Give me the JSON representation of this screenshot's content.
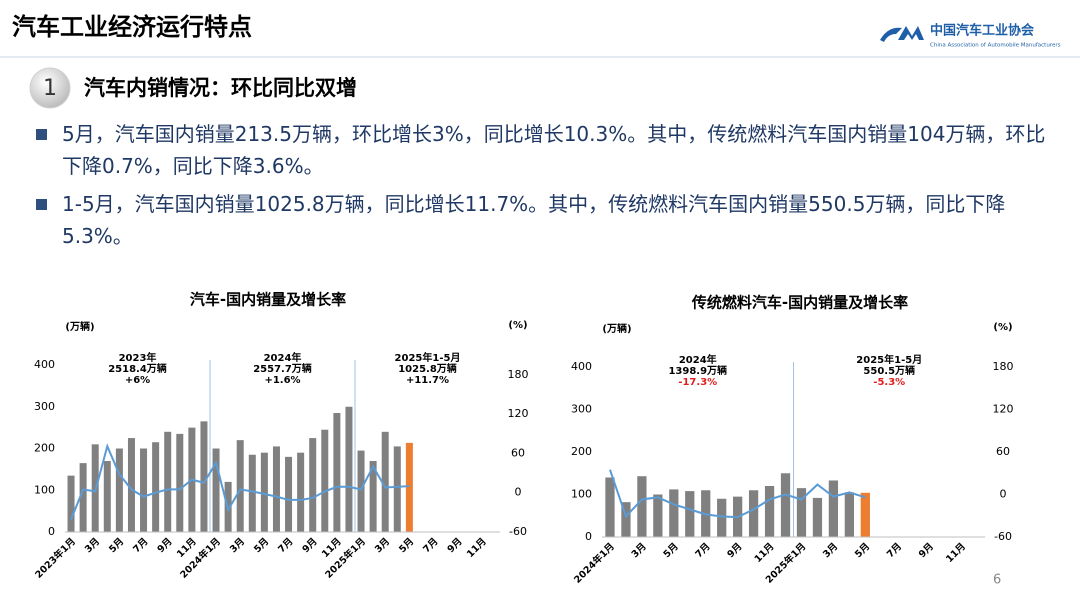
{
  "header": {
    "title": "汽车工业经济运行特点",
    "logo_cn": "中国汽车工业协会",
    "logo_en": "China Association of Automobile Manufacturers"
  },
  "section": {
    "number": "1",
    "title": "汽车内销情况：环比同比双增"
  },
  "bullets": [
    "5月，汽车国内销量213.5万辆，环比增长3%，同比增长10.3%。其中，传统燃料汽车国内销量104万辆，环比下降0.7%，同比下降3.6%。",
    "1-5月，汽车国内销量1025.8万辆，同比增长11.7%。其中，传统燃料汽车国内销量550.5万辆，同比下降5.3%。"
  ],
  "page_number": "6",
  "chart_data": [
    {
      "type": "bar",
      "title": "汽车-国内销量及增长率",
      "y_label": "(万辆)",
      "y2_label": "(%)",
      "categories": [
        "2023年1月",
        null,
        "3月",
        null,
        "5月",
        null,
        "7月",
        null,
        "9月",
        null,
        "11月",
        null,
        "2024年1月",
        null,
        "3月",
        null,
        "5月",
        null,
        "7月",
        null,
        "9月",
        null,
        "11月",
        null,
        "2025年1月",
        null,
        "3月",
        null,
        "5月",
        null,
        "7月",
        null,
        "9月",
        null,
        "11月",
        null
      ],
      "series": [
        {
          "type": "bar",
          "color": "#808080",
          "last_color": "#ed7d31",
          "values": [
            135,
            165,
            210,
            170,
            200,
            225,
            200,
            215,
            240,
            235,
            250,
            265,
            200,
            120,
            220,
            185,
            190,
            205,
            180,
            190,
            225,
            245,
            285,
            300,
            195,
            170,
            240,
            205,
            213.5,
            null,
            null,
            null,
            null,
            null,
            null,
            null
          ]
        },
        {
          "type": "line",
          "axis": "y2",
          "color": "#5b9bd5",
          "values": [
            -41,
            5,
            2,
            71,
            28,
            5,
            -6,
            0,
            5,
            5,
            20,
            15,
            46,
            -26,
            5,
            2,
            -2,
            -6,
            -11,
            -11,
            -8,
            2,
            9,
            9,
            5,
            40,
            8,
            9,
            10,
            null,
            null,
            null,
            null,
            null,
            null,
            null
          ]
        }
      ],
      "ylim": [
        0,
        400
      ],
      "yticks": [
        0,
        100,
        200,
        300,
        400
      ],
      "y2lim": [
        -60,
        195
      ],
      "y2ticks": [
        -60,
        0,
        60,
        120,
        180
      ],
      "annotations": [
        {
          "period": "2023年",
          "volume": "2518.4万辆",
          "growth": "+6%"
        },
        {
          "period": "2024年",
          "volume": "2557.7万辆",
          "growth": "+1.6%"
        },
        {
          "period": "2025年1-5月",
          "volume": "1025.8万辆",
          "growth": "+11.7%"
        }
      ],
      "growth_color": "#000000"
    },
    {
      "type": "bar",
      "title": "传统燃料汽车-国内销量及增长率",
      "y_label": "(万辆)",
      "y2_label": "(%)",
      "categories": [
        "2024年1月",
        null,
        "3月",
        null,
        "5月",
        null,
        "7月",
        null,
        "9月",
        null,
        "11月",
        null,
        "2025年1月",
        null,
        "3月",
        null,
        "5月",
        null,
        "7月",
        null,
        "9月",
        null,
        "11月",
        null
      ],
      "series": [
        {
          "type": "bar",
          "color": "#808080",
          "last_color": "#ed7d31",
          "values": [
            140,
            82,
            143,
            100,
            112,
            108,
            110,
            90,
            95,
            110,
            120,
            150,
            115,
            92,
            133,
            105,
            104,
            null,
            null,
            null,
            null,
            null,
            null,
            null
          ]
        },
        {
          "type": "line",
          "axis": "y2",
          "color": "#5b9bd5",
          "values": [
            35,
            -31,
            -7,
            -4,
            -14,
            -21,
            -28,
            -31,
            -32,
            -21,
            -7,
            0,
            -7,
            14,
            -3,
            3,
            -4,
            null,
            null,
            null,
            null,
            null,
            null,
            null
          ]
        }
      ],
      "ylim": [
        0,
        400
      ],
      "yticks": [
        0,
        100,
        200,
        300,
        400
      ],
      "y2lim": [
        -60,
        180
      ],
      "y2ticks": [
        -60,
        0,
        60,
        120,
        180
      ],
      "annotations": [
        {
          "period": "2024年",
          "volume": "1398.9万辆",
          "growth": "-17.3%"
        },
        {
          "period": "2025年1-5月",
          "volume": "550.5万辆",
          "growth": "-5.3%"
        }
      ],
      "growth_color": "#e02020"
    }
  ]
}
